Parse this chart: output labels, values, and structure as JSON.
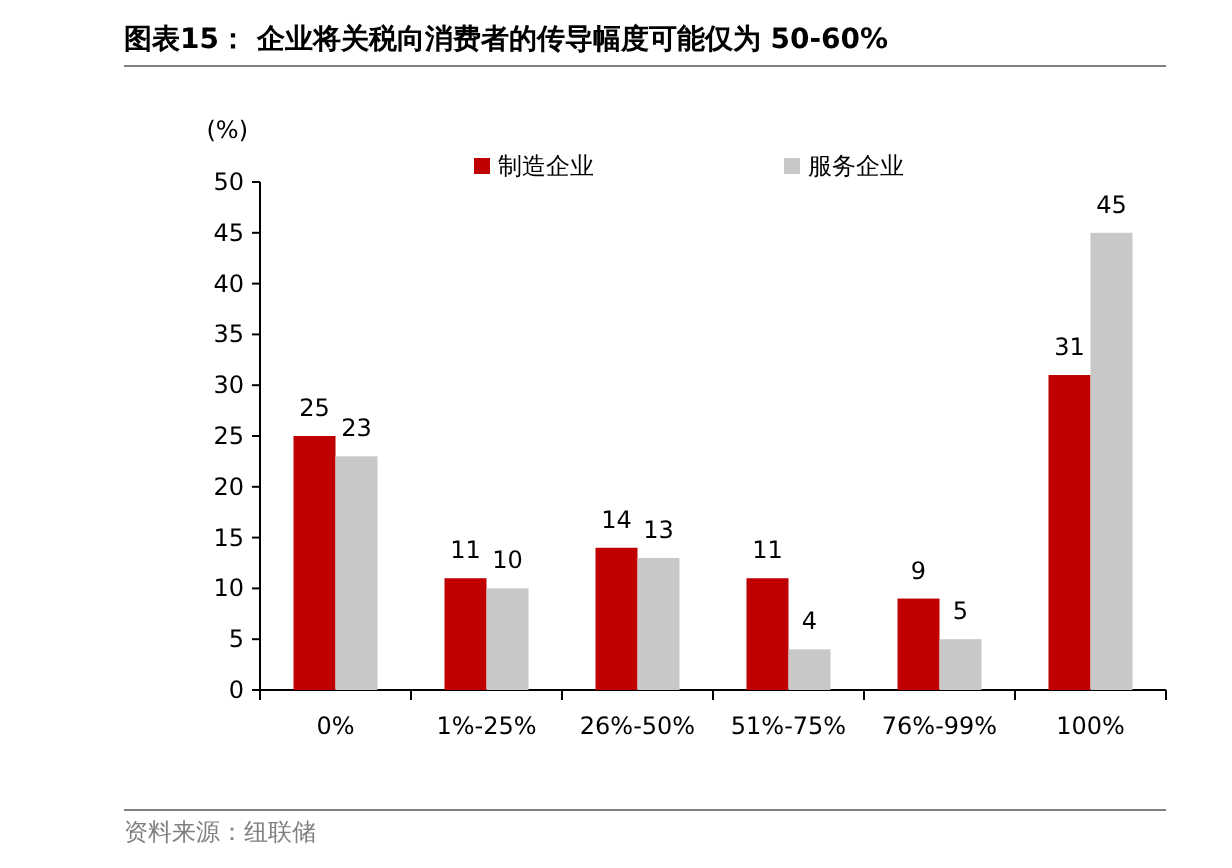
{
  "chart_data": {
    "type": "bar",
    "title": "图表15：  企业将关税向消费者的传导幅度可能仅为 50-60%",
    "ylabel": "(%)",
    "categories": [
      "0%",
      "1%-25%",
      "26%-50%",
      "51%-75%",
      "76%-99%",
      "100%"
    ],
    "series": [
      {
        "name": "制造企业",
        "color": "#c00000",
        "values": [
          25,
          11,
          14,
          11,
          9,
          31
        ]
      },
      {
        "name": "服务企业",
        "color": "#c8c8c8",
        "values": [
          23,
          10,
          13,
          4,
          5,
          45
        ]
      }
    ],
    "ylim": [
      0,
      50
    ],
    "yticks": [
      0,
      5,
      10,
      15,
      20,
      25,
      30,
      35,
      40,
      45,
      50
    ],
    "data_labels": true,
    "legend": "top",
    "grid": false,
    "annotations": [
      "资料来源：纽联储"
    ]
  }
}
